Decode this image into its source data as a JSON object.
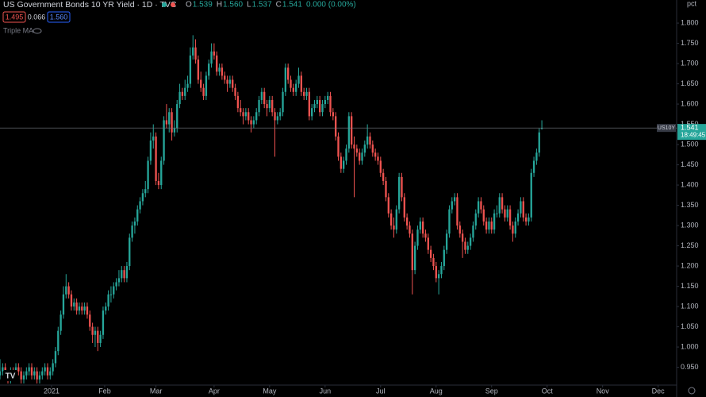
{
  "header": {
    "title": "US Government Bonds 10 YR Yield · 1D · TVC",
    "ohlc": [
      "O",
      "1.539",
      "H",
      "1.560",
      "L",
      "1.537",
      "C",
      "1.541",
      "0.000 (0.00%)"
    ],
    "bid": "1.495",
    "spread": "0.066",
    "ask": "1.560",
    "indicator": "Triple MA"
  },
  "chart_data": {
    "type": "candlestick",
    "unit": "pct",
    "up_color": "#26a69a",
    "down_color": "#ef5350",
    "xlim": [
      0,
      256
    ],
    "xticks": [
      {
        "value": 19.5,
        "label": "2021"
      },
      {
        "value": 39.6,
        "label": "Feb"
      },
      {
        "value": 59,
        "label": "Mar"
      },
      {
        "value": 81,
        "label": "Apr"
      },
      {
        "value": 102,
        "label": "May"
      },
      {
        "value": 123,
        "label": "Jun"
      },
      {
        "value": 144,
        "label": "Jul"
      },
      {
        "value": 165,
        "label": "Aug"
      },
      {
        "value": 186,
        "label": "Sep"
      },
      {
        "value": 207,
        "label": "Oct"
      },
      {
        "value": 228,
        "label": "Nov"
      },
      {
        "value": 249,
        "label": "Dec"
      }
    ],
    "ylim": [
      0.906,
      1.857
    ],
    "yticks": [
      {
        "value": 0.95,
        "label": "0.950"
      },
      {
        "value": 1.0,
        "label": "1.000"
      },
      {
        "value": 1.05,
        "label": "1.050"
      },
      {
        "value": 1.1,
        "label": "1.100"
      },
      {
        "value": 1.15,
        "label": "1.150"
      },
      {
        "value": 1.2,
        "label": "1.200"
      },
      {
        "value": 1.25,
        "label": "1.250"
      },
      {
        "value": 1.3,
        "label": "1.300"
      },
      {
        "value": 1.35,
        "label": "1.350"
      },
      {
        "value": 1.4,
        "label": "1.400"
      },
      {
        "value": 1.45,
        "label": "1.450"
      },
      {
        "value": 1.5,
        "label": "1.500"
      },
      {
        "value": 1.55,
        "label": "1.550"
      },
      {
        "value": 1.6,
        "label": "1.600"
      },
      {
        "value": 1.65,
        "label": "1.650"
      },
      {
        "value": 1.7,
        "label": "1.700"
      },
      {
        "value": 1.75,
        "label": "1.750"
      },
      {
        "value": 1.8,
        "label": "1.800"
      }
    ],
    "last": {
      "symbol": "US10Y",
      "price": "1.541",
      "countdown": "18:49:45"
    },
    "ohlc": [
      [
        0.93,
        0.97,
        0.92,
        0.94
      ],
      [
        0.94,
        0.96,
        0.93,
        0.95
      ],
      [
        0.95,
        0.96,
        0.92,
        0.93
      ],
      [
        0.93,
        0.94,
        0.91,
        0.92
      ],
      [
        0.92,
        0.95,
        0.91,
        0.94
      ],
      [
        0.94,
        0.95,
        0.92,
        0.93
      ],
      [
        0.93,
        0.96,
        0.92,
        0.95
      ],
      [
        0.95,
        0.96,
        0.93,
        0.94
      ],
      [
        0.94,
        0.95,
        0.91,
        0.92
      ],
      [
        0.92,
        0.94,
        0.91,
        0.93
      ],
      [
        0.93,
        0.95,
        0.92,
        0.94
      ],
      [
        0.94,
        0.96,
        0.93,
        0.95
      ],
      [
        0.95,
        0.96,
        0.92,
        0.93
      ],
      [
        0.93,
        0.95,
        0.92,
        0.94
      ],
      [
        0.94,
        0.95,
        0.91,
        0.92
      ],
      [
        0.92,
        0.94,
        0.91,
        0.93
      ],
      [
        0.93,
        0.95,
        0.92,
        0.94
      ],
      [
        0.94,
        0.96,
        0.93,
        0.95
      ],
      [
        0.95,
        0.96,
        0.92,
        0.93
      ],
      [
        0.93,
        0.95,
        0.92,
        0.94
      ],
      [
        0.94,
        0.97,
        0.93,
        0.96
      ],
      [
        0.96,
        1.0,
        0.95,
        0.99
      ],
      [
        0.99,
        1.05,
        0.98,
        1.04
      ],
      [
        1.04,
        1.09,
        1.03,
        1.08
      ],
      [
        1.08,
        1.15,
        1.07,
        1.13
      ],
      [
        1.13,
        1.18,
        1.12,
        1.15
      ],
      [
        1.15,
        1.16,
        1.12,
        1.13
      ],
      [
        1.13,
        1.14,
        1.09,
        1.1
      ],
      [
        1.1,
        1.12,
        1.09,
        1.11
      ],
      [
        1.11,
        1.12,
        1.08,
        1.09
      ],
      [
        1.09,
        1.11,
        1.08,
        1.1
      ],
      [
        1.1,
        1.11,
        1.08,
        1.09
      ],
      [
        1.09,
        1.11,
        1.08,
        1.1
      ],
      [
        1.1,
        1.11,
        1.07,
        1.08
      ],
      [
        1.08,
        1.09,
        1.04,
        1.05
      ],
      [
        1.05,
        1.06,
        1.01,
        1.03
      ],
      [
        1.03,
        1.05,
        1.0,
        1.04
      ],
      [
        1.04,
        1.05,
        0.99,
        1.01
      ],
      [
        1.01,
        1.04,
        1.0,
        1.03
      ],
      [
        1.03,
        1.1,
        1.02,
        1.09
      ],
      [
        1.09,
        1.11,
        1.08,
        1.1
      ],
      [
        1.1,
        1.14,
        1.09,
        1.13
      ],
      [
        1.13,
        1.15,
        1.11,
        1.13
      ],
      [
        1.13,
        1.16,
        1.12,
        1.15
      ],
      [
        1.15,
        1.17,
        1.14,
        1.16
      ],
      [
        1.16,
        1.19,
        1.15,
        1.17
      ],
      [
        1.17,
        1.2,
        1.16,
        1.19
      ],
      [
        1.19,
        1.2,
        1.16,
        1.17
      ],
      [
        1.17,
        1.21,
        1.16,
        1.2
      ],
      [
        1.2,
        1.28,
        1.19,
        1.27
      ],
      [
        1.27,
        1.31,
        1.26,
        1.3
      ],
      [
        1.3,
        1.32,
        1.28,
        1.31
      ],
      [
        1.31,
        1.35,
        1.3,
        1.34
      ],
      [
        1.34,
        1.37,
        1.33,
        1.36
      ],
      [
        1.36,
        1.39,
        1.35,
        1.38
      ],
      [
        1.38,
        1.41,
        1.37,
        1.39
      ],
      [
        1.39,
        1.47,
        1.38,
        1.46
      ],
      [
        1.46,
        1.53,
        1.45,
        1.51
      ],
      [
        1.51,
        1.55,
        1.49,
        1.52
      ],
      [
        1.52,
        1.53,
        1.4,
        1.41
      ],
      [
        1.41,
        1.43,
        1.39,
        1.4
      ],
      [
        1.4,
        1.47,
        1.39,
        1.46
      ],
      [
        1.46,
        1.57,
        1.45,
        1.56
      ],
      [
        1.56,
        1.6,
        1.54,
        1.55
      ],
      [
        1.55,
        1.59,
        1.53,
        1.58
      ],
      [
        1.58,
        1.59,
        1.51,
        1.53
      ],
      [
        1.53,
        1.56,
        1.52,
        1.54
      ],
      [
        1.54,
        1.61,
        1.53,
        1.6
      ],
      [
        1.6,
        1.65,
        1.59,
        1.63
      ],
      [
        1.63,
        1.64,
        1.61,
        1.62
      ],
      [
        1.62,
        1.66,
        1.61,
        1.64
      ],
      [
        1.64,
        1.67,
        1.63,
        1.65
      ],
      [
        1.65,
        1.74,
        1.64,
        1.72
      ],
      [
        1.72,
        1.77,
        1.71,
        1.74
      ],
      [
        1.74,
        1.76,
        1.7,
        1.71
      ],
      [
        1.71,
        1.72,
        1.65,
        1.66
      ],
      [
        1.66,
        1.68,
        1.63,
        1.64
      ],
      [
        1.64,
        1.65,
        1.61,
        1.62
      ],
      [
        1.62,
        1.68,
        1.61,
        1.67
      ],
      [
        1.67,
        1.71,
        1.66,
        1.7
      ],
      [
        1.7,
        1.75,
        1.69,
        1.73
      ],
      [
        1.73,
        1.75,
        1.71,
        1.72
      ],
      [
        1.72,
        1.73,
        1.67,
        1.68
      ],
      [
        1.68,
        1.7,
        1.67,
        1.69
      ],
      [
        1.69,
        1.7,
        1.66,
        1.67
      ],
      [
        1.67,
        1.68,
        1.65,
        1.66
      ],
      [
        1.66,
        1.67,
        1.63,
        1.65
      ],
      [
        1.65,
        1.67,
        1.64,
        1.66
      ],
      [
        1.66,
        1.67,
        1.63,
        1.64
      ],
      [
        1.64,
        1.65,
        1.61,
        1.62
      ],
      [
        1.62,
        1.63,
        1.58,
        1.59
      ],
      [
        1.59,
        1.61,
        1.57,
        1.58
      ],
      [
        1.58,
        1.59,
        1.55,
        1.57
      ],
      [
        1.57,
        1.59,
        1.56,
        1.58
      ],
      [
        1.58,
        1.59,
        1.55,
        1.56
      ],
      [
        1.56,
        1.57,
        1.53,
        1.55
      ],
      [
        1.55,
        1.57,
        1.54,
        1.56
      ],
      [
        1.56,
        1.59,
        1.55,
        1.58
      ],
      [
        1.58,
        1.62,
        1.57,
        1.61
      ],
      [
        1.61,
        1.64,
        1.6,
        1.63
      ],
      [
        1.63,
        1.64,
        1.59,
        1.6
      ],
      [
        1.6,
        1.61,
        1.57,
        1.59
      ],
      [
        1.59,
        1.62,
        1.58,
        1.61
      ],
      [
        1.61,
        1.62,
        1.57,
        1.58
      ],
      [
        1.58,
        1.59,
        1.47,
        1.56
      ],
      [
        1.56,
        1.58,
        1.55,
        1.57
      ],
      [
        1.57,
        1.59,
        1.56,
        1.58
      ],
      [
        1.58,
        1.64,
        1.57,
        1.63
      ],
      [
        1.63,
        1.7,
        1.62,
        1.69
      ],
      [
        1.69,
        1.7,
        1.65,
        1.66
      ],
      [
        1.66,
        1.67,
        1.63,
        1.64
      ],
      [
        1.64,
        1.65,
        1.62,
        1.63
      ],
      [
        1.63,
        1.66,
        1.62,
        1.65
      ],
      [
        1.65,
        1.69,
        1.64,
        1.67
      ],
      [
        1.67,
        1.68,
        1.62,
        1.63
      ],
      [
        1.63,
        1.64,
        1.61,
        1.62
      ],
      [
        1.62,
        1.64,
        1.61,
        1.63
      ],
      [
        1.63,
        1.64,
        1.56,
        1.57
      ],
      [
        1.57,
        1.6,
        1.56,
        1.59
      ],
      [
        1.59,
        1.61,
        1.58,
        1.6
      ],
      [
        1.6,
        1.62,
        1.59,
        1.61
      ],
      [
        1.61,
        1.62,
        1.57,
        1.58
      ],
      [
        1.58,
        1.61,
        1.57,
        1.6
      ],
      [
        1.6,
        1.62,
        1.59,
        1.61
      ],
      [
        1.61,
        1.63,
        1.6,
        1.62
      ],
      [
        1.62,
        1.63,
        1.57,
        1.58
      ],
      [
        1.58,
        1.59,
        1.56,
        1.57
      ],
      [
        1.57,
        1.58,
        1.51,
        1.52
      ],
      [
        1.52,
        1.53,
        1.46,
        1.47
      ],
      [
        1.47,
        1.48,
        1.43,
        1.44
      ],
      [
        1.44,
        1.47,
        1.43,
        1.46
      ],
      [
        1.46,
        1.5,
        1.45,
        1.49
      ],
      [
        1.49,
        1.58,
        1.48,
        1.57
      ],
      [
        1.57,
        1.58,
        1.49,
        1.5
      ],
      [
        1.5,
        1.52,
        1.37,
        1.49
      ],
      [
        1.49,
        1.5,
        1.47,
        1.48
      ],
      [
        1.48,
        1.49,
        1.45,
        1.46
      ],
      [
        1.46,
        1.49,
        1.45,
        1.48
      ],
      [
        1.48,
        1.51,
        1.47,
        1.5
      ],
      [
        1.5,
        1.55,
        1.49,
        1.52
      ],
      [
        1.52,
        1.53,
        1.49,
        1.5
      ],
      [
        1.5,
        1.51,
        1.47,
        1.48
      ],
      [
        1.48,
        1.49,
        1.46,
        1.47
      ],
      [
        1.47,
        1.48,
        1.45,
        1.46
      ],
      [
        1.46,
        1.47,
        1.42,
        1.43
      ],
      [
        1.43,
        1.44,
        1.4,
        1.41
      ],
      [
        1.41,
        1.42,
        1.36,
        1.37
      ],
      [
        1.37,
        1.38,
        1.32,
        1.33
      ],
      [
        1.33,
        1.34,
        1.29,
        1.3
      ],
      [
        1.3,
        1.32,
        1.27,
        1.29
      ],
      [
        1.29,
        1.35,
        1.28,
        1.34
      ],
      [
        1.34,
        1.43,
        1.33,
        1.42
      ],
      [
        1.42,
        1.43,
        1.36,
        1.37
      ],
      [
        1.37,
        1.38,
        1.31,
        1.32
      ],
      [
        1.32,
        1.33,
        1.29,
        1.3
      ],
      [
        1.3,
        1.31,
        1.27,
        1.28
      ],
      [
        1.28,
        1.29,
        1.13,
        1.19
      ],
      [
        1.19,
        1.26,
        1.18,
        1.25
      ],
      [
        1.25,
        1.3,
        1.24,
        1.29
      ],
      [
        1.29,
        1.32,
        1.28,
        1.31
      ],
      [
        1.31,
        1.32,
        1.27,
        1.28
      ],
      [
        1.28,
        1.29,
        1.26,
        1.27
      ],
      [
        1.27,
        1.28,
        1.23,
        1.24
      ],
      [
        1.24,
        1.25,
        1.21,
        1.22
      ],
      [
        1.22,
        1.23,
        1.19,
        1.2
      ],
      [
        1.2,
        1.21,
        1.16,
        1.17
      ],
      [
        1.17,
        1.19,
        1.13,
        1.18
      ],
      [
        1.18,
        1.21,
        1.17,
        1.2
      ],
      [
        1.2,
        1.25,
        1.19,
        1.24
      ],
      [
        1.24,
        1.29,
        1.23,
        1.28
      ],
      [
        1.28,
        1.35,
        1.27,
        1.34
      ],
      [
        1.34,
        1.37,
        1.33,
        1.36
      ],
      [
        1.36,
        1.38,
        1.35,
        1.37
      ],
      [
        1.37,
        1.38,
        1.29,
        1.3
      ],
      [
        1.3,
        1.31,
        1.27,
        1.28
      ],
      [
        1.28,
        1.29,
        1.22,
        1.26
      ],
      [
        1.26,
        1.27,
        1.23,
        1.24
      ],
      [
        1.24,
        1.26,
        1.23,
        1.25
      ],
      [
        1.25,
        1.28,
        1.24,
        1.27
      ],
      [
        1.27,
        1.31,
        1.26,
        1.3
      ],
      [
        1.3,
        1.34,
        1.29,
        1.33
      ],
      [
        1.33,
        1.37,
        1.32,
        1.36
      ],
      [
        1.36,
        1.37,
        1.33,
        1.34
      ],
      [
        1.34,
        1.35,
        1.3,
        1.31
      ],
      [
        1.31,
        1.32,
        1.28,
        1.29
      ],
      [
        1.29,
        1.32,
        1.28,
        1.31
      ],
      [
        1.31,
        1.32,
        1.28,
        1.29
      ],
      [
        1.29,
        1.34,
        1.28,
        1.33
      ],
      [
        1.33,
        1.35,
        1.32,
        1.33
      ],
      [
        1.33,
        1.38,
        1.32,
        1.37
      ],
      [
        1.37,
        1.38,
        1.33,
        1.34
      ],
      [
        1.34,
        1.35,
        1.31,
        1.32
      ],
      [
        1.32,
        1.35,
        1.31,
        1.34
      ],
      [
        1.34,
        1.35,
        1.29,
        1.3
      ],
      [
        1.3,
        1.31,
        1.26,
        1.28
      ],
      [
        1.28,
        1.32,
        1.27,
        1.31
      ],
      [
        1.31,
        1.34,
        1.3,
        1.33
      ],
      [
        1.33,
        1.37,
        1.32,
        1.36
      ],
      [
        1.36,
        1.37,
        1.31,
        1.32
      ],
      [
        1.32,
        1.33,
        1.3,
        1.31
      ],
      [
        1.31,
        1.33,
        1.3,
        1.32
      ],
      [
        1.32,
        1.44,
        1.31,
        1.43
      ],
      [
        1.43,
        1.47,
        1.42,
        1.46
      ],
      [
        1.46,
        1.49,
        1.45,
        1.48
      ],
      [
        1.48,
        1.54,
        1.47,
        1.53
      ],
      [
        1.539,
        1.56,
        1.537,
        1.541
      ]
    ]
  }
}
